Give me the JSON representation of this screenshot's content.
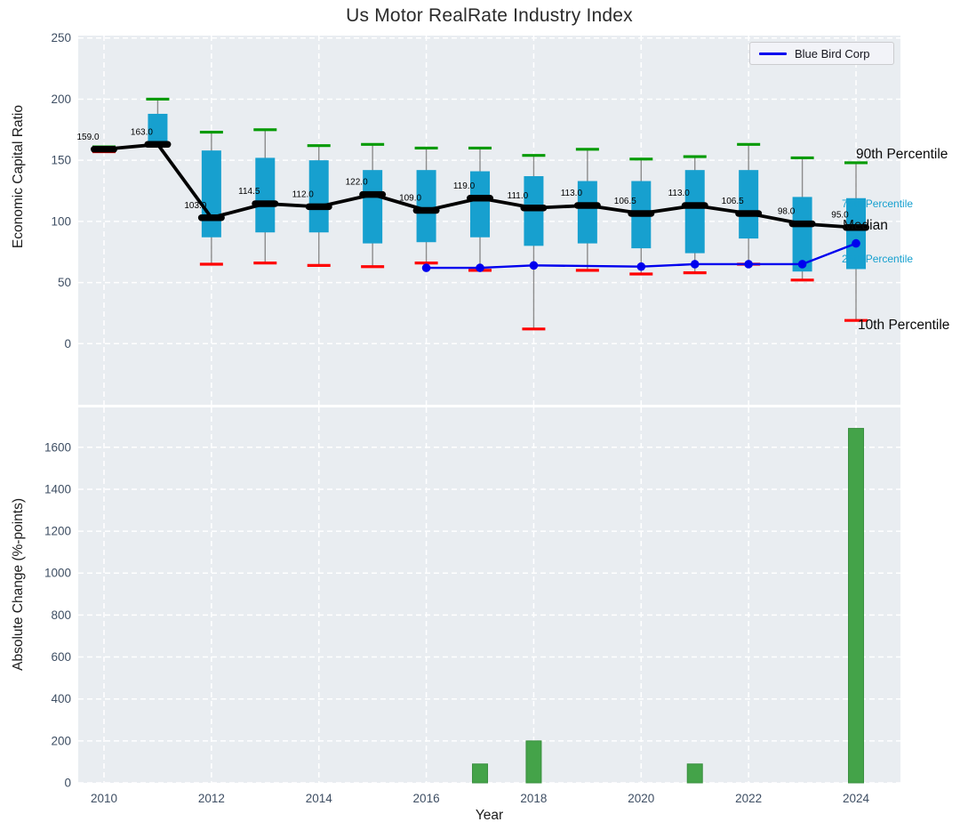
{
  "title": "Us Motor RealRate Industry Index",
  "legend": {
    "label": "Blue Bird Corp"
  },
  "annotations": [
    {
      "id": "p90",
      "label": "90th Percentile",
      "style": "dark",
      "level": 148
    },
    {
      "id": "p75",
      "label": "75th Percentile",
      "style": "cyan",
      "level": 119
    },
    {
      "id": "median",
      "label": "Median",
      "style": "dark",
      "level": 95
    },
    {
      "id": "p25",
      "label": "25th Percentile",
      "style": "cyan",
      "level": 61
    },
    {
      "id": "p10",
      "label": "10th Percentile",
      "style": "dark",
      "level": 19
    }
  ],
  "colors": {
    "axes_bg": "#e9edf1",
    "grid": "#ffffff",
    "box": "#17a0cf",
    "whisker": "#8c8c8c",
    "cap_green": "#009a00",
    "cap_red": "#ff0000",
    "median": "#000000",
    "blue_line": "#0000ee",
    "bar": "#44a349",
    "bar_edge": "#3a8f40",
    "tick": "#3e4e63"
  },
  "chart_data": [
    {
      "type": "boxplot+line",
      "panel": "top",
      "title": "Us Motor RealRate Industry Index",
      "ylabel": "Economic Capital Ratio",
      "ylim": [
        -50,
        252
      ],
      "yticks": [
        0,
        50,
        100,
        150,
        200,
        250
      ],
      "grid": "white dashed, on",
      "legend_position": "upper right",
      "years": [
        2010,
        2011,
        2012,
        2013,
        2014,
        2015,
        2016,
        2017,
        2018,
        2019,
        2020,
        2021,
        2022,
        2023,
        2024
      ],
      "series": [
        {
          "name": "90th Percentile",
          "values": [
            161,
            200,
            173,
            175,
            162,
            163,
            160,
            160,
            154,
            159,
            151,
            153,
            163,
            152,
            148
          ]
        },
        {
          "name": "75th Percentile",
          "values": [
            160,
            188,
            158,
            152,
            150,
            142,
            142,
            141,
            137,
            133,
            133,
            142,
            142,
            120,
            119
          ]
        },
        {
          "name": "Median",
          "values": [
            159,
            163,
            103,
            114.5,
            112,
            122,
            109,
            119,
            111,
            113,
            106.5,
            113,
            106.5,
            98,
            95
          ]
        },
        {
          "name": "25th Percentile",
          "values": [
            158,
            164,
            87,
            91,
            91,
            82,
            83,
            87,
            80,
            82,
            78,
            74,
            86,
            59,
            61
          ]
        },
        {
          "name": "10th Percentile",
          "values": [
            157,
            163,
            65,
            66,
            64,
            63,
            66,
            60,
            12,
            60,
            57,
            58,
            65,
            52,
            19
          ]
        }
      ],
      "median_labels": [
        "159.0",
        "163.0",
        "103.0",
        "114.5",
        "112.0",
        "122.0",
        "109.0",
        "119.0",
        "111.0",
        "113.0",
        "106.5",
        "113.0",
        "106.5",
        "98.0",
        "95.0"
      ],
      "blue_bird": {
        "name": "Blue Bird Corp",
        "x": [
          2016,
          2017,
          2018,
          2020,
          2021,
          2022,
          2023,
          2024
        ],
        "values": [
          62,
          62,
          64,
          63,
          65,
          65,
          65,
          82
        ]
      }
    },
    {
      "type": "bar",
      "panel": "bottom",
      "xlabel": "Year",
      "ylabel": "Absolute Change (%-points)",
      "ylim": [
        0,
        1790
      ],
      "yticks": [
        0,
        200,
        400,
        600,
        800,
        1000,
        1200,
        1400,
        1600
      ],
      "xticks": [
        2010,
        2012,
        2014,
        2016,
        2018,
        2020,
        2022,
        2024
      ],
      "categories": [
        2017,
        2018,
        2021,
        2024
      ],
      "values": [
        90,
        200,
        90,
        1690
      ]
    }
  ]
}
